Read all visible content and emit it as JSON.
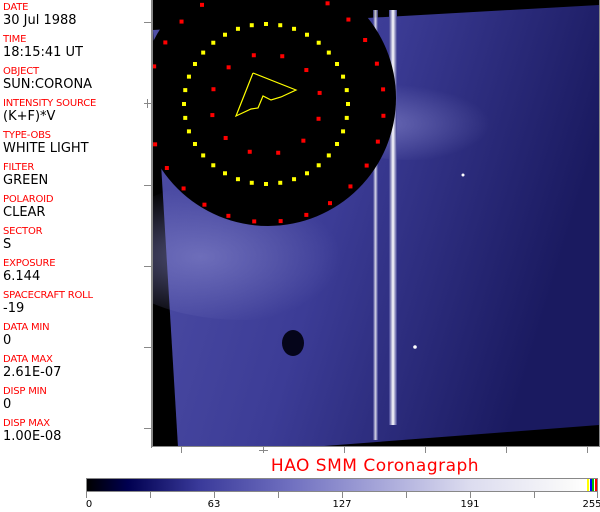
{
  "header_fields": [
    {
      "label": "DATE",
      "value": "30 Jul 1988"
    },
    {
      "label": "TIME",
      "value": "18:15:41 UT"
    },
    {
      "label": "OBJECT",
      "value": "SUN:CORONA"
    },
    {
      "label": "INTENSITY SOURCE",
      "value": "(K+F)*V"
    },
    {
      "label": "TYPE-OBS",
      "value": "WHITE LIGHT"
    },
    {
      "label": "FILTER",
      "value": "GREEN"
    },
    {
      "label": "POLAROID",
      "value": "CLEAR"
    },
    {
      "label": "SECTOR",
      "value": "S"
    },
    {
      "label": "EXPOSURE",
      "value": "6.144"
    },
    {
      "label": "SPACECRAFT ROLL",
      "value": "-19"
    },
    {
      "label": "DATA MIN",
      "value": "0"
    },
    {
      "label": "DATA MAX",
      "value": "2.61E-07"
    },
    {
      "label": "DISP MIN",
      "value": "0"
    },
    {
      "label": "DISP MAX",
      "value": "1.00E-08"
    }
  ],
  "title": "HAO   SMM Coronagraph",
  "colorbar": {
    "tick_labels": [
      "0",
      "63",
      "127",
      "191",
      "255"
    ],
    "range": [
      0,
      255
    ],
    "colormap": [
      "#000000",
      "#000050",
      "#7070c0",
      "#ffffff"
    ],
    "overlay_colors": [
      "#ffff00",
      "#0000ff",
      "#00c000",
      "#ff0000"
    ]
  },
  "overlay_colors": {
    "dots_outer": "#ff0000",
    "dots_ring": "#ffff00",
    "polygon": "#ffff00"
  }
}
